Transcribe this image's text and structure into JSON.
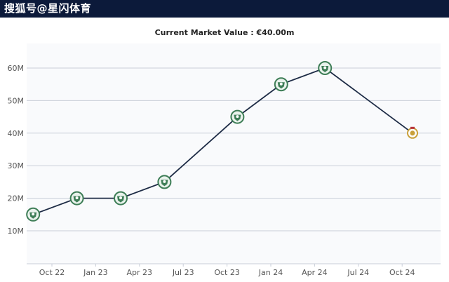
{
  "header": {
    "text": "搜狐号@星闪体育"
  },
  "chart_data": {
    "type": "line",
    "title": "Current Market Value : €40.00m",
    "x_ticks": [
      "Oct 22",
      "Jan 23",
      "Apr 23",
      "Jul 23",
      "Oct 23",
      "Jan 24",
      "Apr 24",
      "Jul 24",
      "Oct 24"
    ],
    "y_ticks": [
      "10M",
      "20M",
      "30M",
      "40M",
      "50M",
      "60M"
    ],
    "ylim": [
      10,
      60
    ],
    "y_unit": "M",
    "grid": true,
    "line_color": "#1d2b45",
    "marker_color": "#3d7d56",
    "last_marker_color": "#c9a03a",
    "points": [
      {
        "x": "2022-09",
        "y": 15
      },
      {
        "x": "2022-12",
        "y": 20
      },
      {
        "x": "2023-03",
        "y": 20
      },
      {
        "x": "2023-06",
        "y": 25
      },
      {
        "x": "2023-11",
        "y": 45
      },
      {
        "x": "2024-02",
        "y": 55
      },
      {
        "x": "2024-05",
        "y": 60
      },
      {
        "x": "2024-11",
        "y": 40
      }
    ]
  }
}
